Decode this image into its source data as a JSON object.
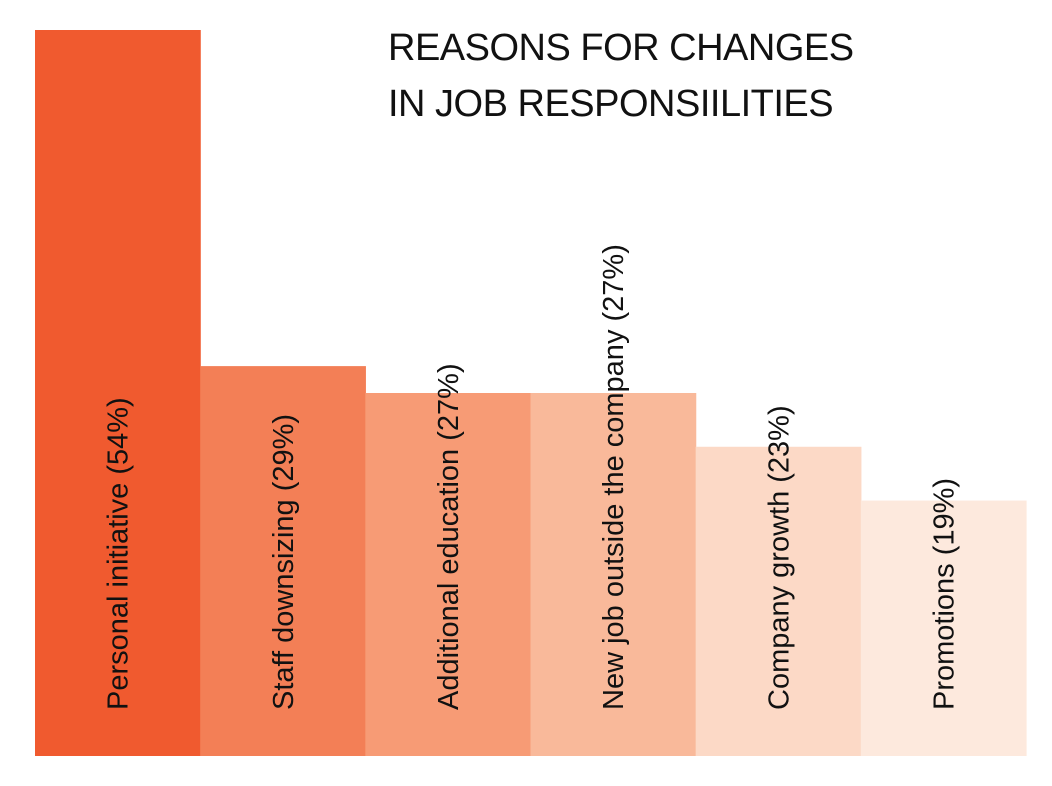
{
  "chart_data": {
    "type": "bar",
    "title": "REASONS FOR CHANGES IN JOB RESPONSIILITIES",
    "title_lines": [
      "REASONS FOR CHANGES",
      "IN JOB RESPONSIILITIES"
    ],
    "categories": [
      "Personal initiative",
      "Staff downsizing",
      "Additional education",
      "New job outside the company",
      "Company growth",
      "Promotions"
    ],
    "values": [
      54,
      29,
      27,
      27,
      23,
      19
    ],
    "labels": [
      "Personal initiative (54%)",
      "Staff downsizing (29%)",
      "Additional education (27%)",
      "New job outside the company (27%)",
      "Company growth (23%)",
      "Promotions (19%)"
    ],
    "colors": [
      "#f05a2f",
      "#f37f56",
      "#f79b75",
      "#f9b99a",
      "#fcd9c6",
      "#fde9dd"
    ],
    "unit": "%",
    "ylim": [
      0,
      54
    ],
    "xlabel": "",
    "ylabel": "",
    "grid": false,
    "legend": "none",
    "axes_visible": false
  }
}
